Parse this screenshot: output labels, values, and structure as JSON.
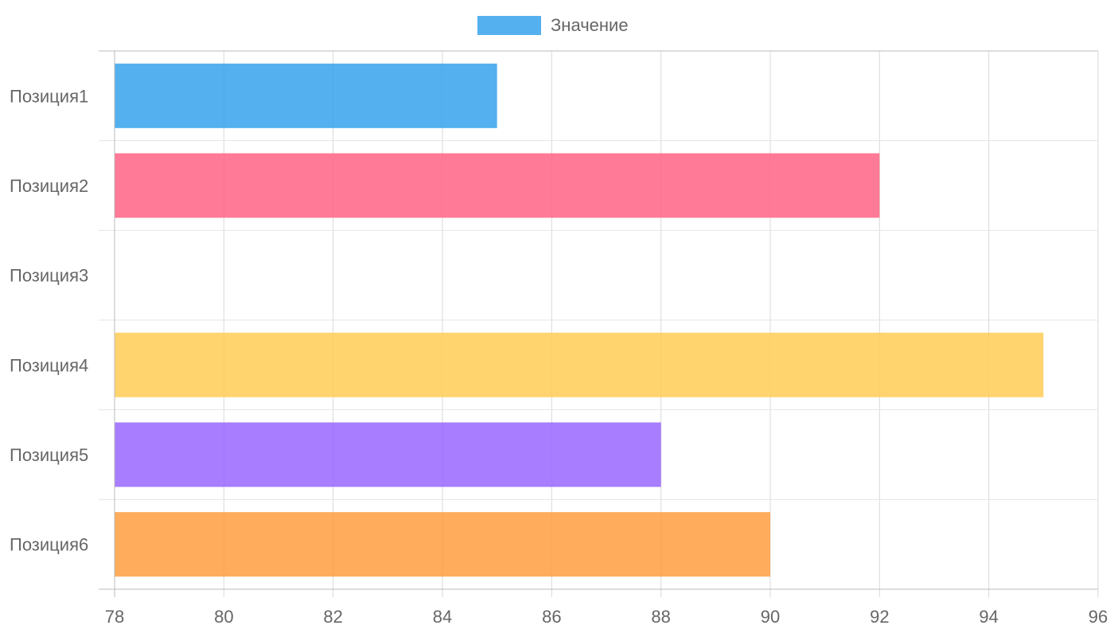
{
  "chart_data": {
    "type": "bar",
    "orientation": "horizontal",
    "title": "",
    "xlabel": "",
    "ylabel": "",
    "categories": [
      "Позиция1",
      "Позиция2",
      "Позиция3",
      "Позиция4",
      "Позиция5",
      "Позиция6"
    ],
    "series": [
      {
        "name": "Значение",
        "values": [
          85,
          92,
          78,
          95,
          88,
          90
        ],
        "colors": [
          "#36a2eb",
          "#ff6384",
          "#4bc0c0",
          "#ffcd56",
          "#9966ff",
          "#ff9f40"
        ]
      }
    ],
    "xlim": [
      78,
      96
    ],
    "x_ticks": [
      "78",
      "80",
      "82",
      "84",
      "86",
      "88",
      "90",
      "92",
      "94",
      "96"
    ],
    "grid": true,
    "legend": {
      "position": "top-center",
      "entries": [
        {
          "label": "Значение",
          "color": "#36a2eb"
        }
      ]
    }
  }
}
